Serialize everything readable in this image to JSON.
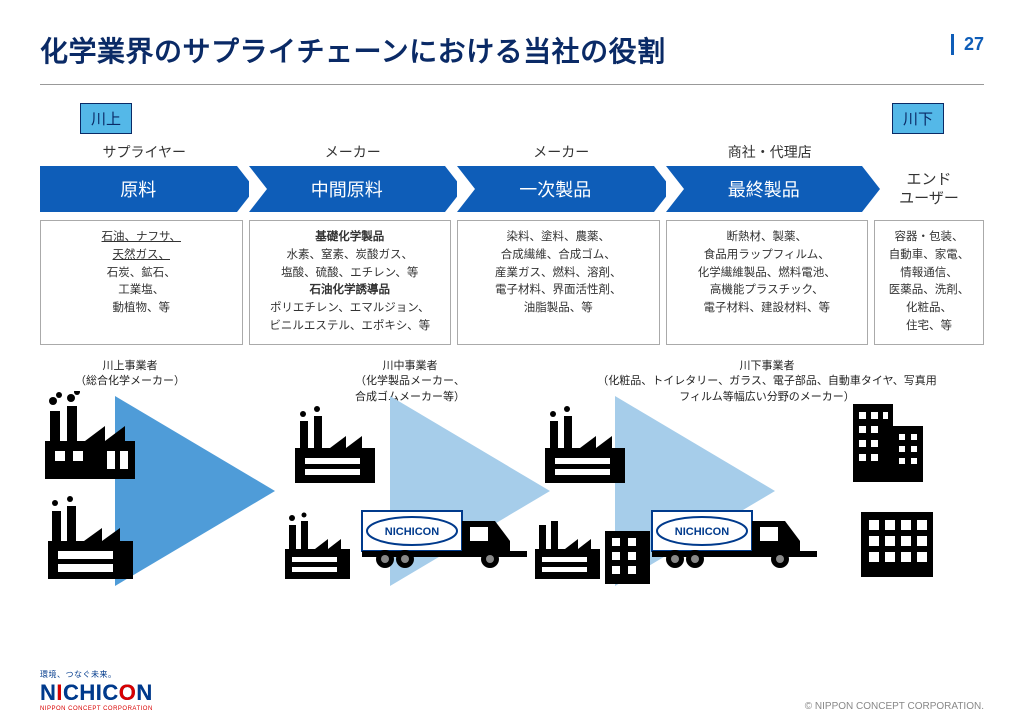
{
  "page_number": "27",
  "title": "化学業界のサプライチェーンにおける当社の役割",
  "colors": {
    "title": "#0a2a66",
    "accent": "#0e5db8",
    "tag_bg": "#54b8e8",
    "tri_fill": "#4f9cd8",
    "text": "#333333",
    "border": "#aaaaaa",
    "logo_blue": "#003a8c",
    "logo_red": "#d80000"
  },
  "tags": {
    "upstream": "川上",
    "downstream": "川下"
  },
  "roles": [
    "サプライヤー",
    "メーカー",
    "メーカー",
    "商社・代理店"
  ],
  "stages": [
    "原料",
    "中間原料",
    "一次製品",
    "最終製品"
  ],
  "end_user": "エンド\nユーザー",
  "boxes": [
    {
      "lines": [
        {
          "t": "石油、ナフサ、",
          "cls": "u"
        },
        {
          "t": "天然ガス、",
          "cls": "u"
        },
        {
          "t": "石炭、鉱石、"
        },
        {
          "t": "工業塩、"
        },
        {
          "t": "動植物、等"
        }
      ]
    },
    {
      "lines": [
        {
          "t": "基礎化学製品",
          "cls": "b"
        },
        {
          "t": "水素、窒素、炭酸ガス、"
        },
        {
          "t": "塩酸、硫酸、エチレン、等"
        },
        {
          "t": "石油化学誘導品",
          "cls": "b"
        },
        {
          "t": "ポリエチレン、エマルジョン、"
        },
        {
          "t": "ビニルエステル、エポキシ、等"
        }
      ]
    },
    {
      "lines": [
        {
          "t": "染料、塗料、農薬、"
        },
        {
          "t": "合成繊維、合成ゴム、"
        },
        {
          "t": "産業ガス、燃料、溶剤、"
        },
        {
          "t": "電子材料、界面活性剤、"
        },
        {
          "t": "油脂製品、等"
        }
      ]
    },
    {
      "lines": [
        {
          "t": "断熱材、製薬、"
        },
        {
          "t": "食品用ラップフィルム、"
        },
        {
          "t": "化学繊維製品、燃料電池、"
        },
        {
          "t": "高機能プラスチック、"
        },
        {
          "t": "電子材料、建設材料、等"
        }
      ]
    },
    {
      "lines": [
        {
          "t": "容器・包装、"
        },
        {
          "t": "自動車、家電、"
        },
        {
          "t": "情報通信、"
        },
        {
          "t": "医薬品、洗剤、"
        },
        {
          "t": "化粧品、"
        },
        {
          "t": "住宅、等"
        }
      ]
    }
  ],
  "lower_labels": [
    "川上事業者\n（総合化学メーカー）",
    "川中事業者\n（化学製品メーカー、\n合成ゴムメーカー等）",
    "川下事業者\n（化粧品、トイレタリー、ガラス、電子部品、自動車タイヤ、写真用\nフィルム等幅広い分野のメーカー）"
  ],
  "truck_label": "NICHICON",
  "logo": {
    "tag": "環境、つなぐ未来。",
    "text_a": "N",
    "text_b": "ICHIC",
    "text_c": "O",
    "text_d": "N",
    "sub": "NIPPON CONCEPT CORPORATION"
  },
  "copyright": "© NIPPON CONCEPT CORPORATION."
}
